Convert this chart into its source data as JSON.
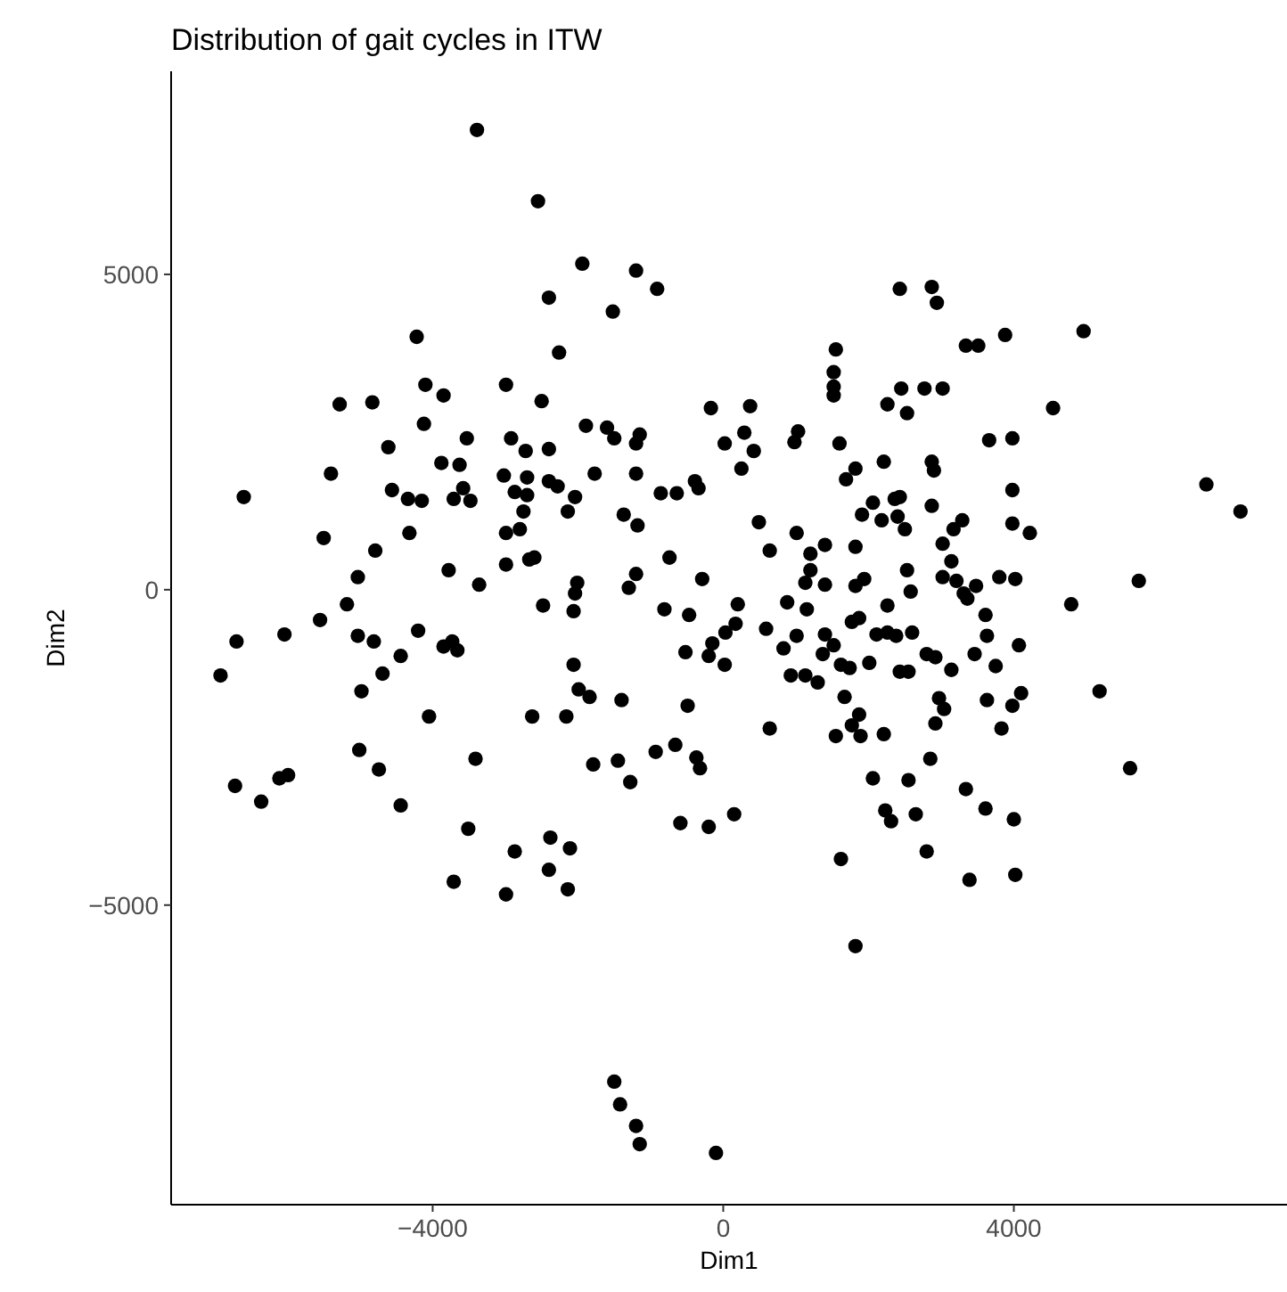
{
  "chart_data": {
    "type": "scatter",
    "title": "Distribution of gait cycles in ITW",
    "xlabel": "Dim1",
    "ylabel": "Dim2",
    "xlim": [
      -7600,
      7760
    ],
    "ylim": [
      -9750,
      8220
    ],
    "xticks": [
      {
        "value": -4000,
        "label": "−4000"
      },
      0,
      4000
    ],
    "yticks": [
      {
        "value": -5000,
        "label": "−5000"
      },
      0,
      5000
    ],
    "grid": false,
    "marker": "circle",
    "series": [
      {
        "color": "#000000",
        "x": [
          -3390,
          -2550,
          -2400,
          -4220,
          -4100,
          -3850,
          -2990,
          -2500,
          -5280,
          -4830,
          -4120,
          -3530,
          -2920,
          -2720,
          -2400,
          -4610,
          -3880,
          -3630,
          -5400,
          -3020,
          -2700,
          -4560,
          -4340,
          -4150,
          -3710,
          -3580,
          -3480,
          -2870,
          -2700,
          -2750,
          -2400,
          -5500,
          -4320,
          -4790,
          -5030,
          -3780,
          -3360,
          -2990,
          -2800,
          -2990,
          -2670,
          -2600,
          -6600,
          -1940,
          -1200,
          -910,
          -1520,
          -2260,
          2430,
          1550,
          1520,
          1520,
          1520,
          2450,
          2260,
          2530,
          -170,
          370,
          290,
          420,
          20,
          250,
          1030,
          980,
          1600,
          1820,
          1690,
          2210,
          2360,
          2060,
          1910,
          2180,
          2400,
          2500,
          1820,
          1400,
          1200,
          1010,
          640,
          490,
          1200,
          1130,
          1400,
          1820,
          1940,
          2530,
          -1890,
          -1600,
          -1500,
          -1150,
          -1200,
          -1770,
          -1200,
          -2280,
          -2040,
          -2140,
          -860,
          -640,
          -390,
          -340,
          -1370,
          -1180,
          -740,
          -290,
          -1200,
          -1300,
          -2010,
          -2040,
          880,
          200,
          2870,
          2940,
          3340,
          3510,
          3880,
          4960,
          2770,
          3020,
          4540,
          3660,
          3980,
          2870,
          2900,
          3980,
          6650,
          7120,
          2430,
          2870,
          3290,
          3170,
          3980,
          4220,
          3020,
          3140,
          2580,
          3020,
          3210,
          3480,
          3800,
          4020,
          5720,
          4790,
          3310,
          -5180,
          -5550,
          -6040,
          -6700,
          -6920,
          -5030,
          -4810,
          -4200,
          -4440,
          -4690,
          -4980,
          -3850,
          -3730,
          -3660,
          -4050,
          -2630,
          -5010,
          -4740,
          -3410,
          -6720,
          -6360,
          -6110,
          -5990,
          -4440,
          -3510,
          -2870,
          -3710,
          -2990,
          -2480,
          -2380,
          -2400,
          -2060,
          -2060,
          -1990,
          -1840,
          -1400,
          -2160,
          -1790,
          -1450,
          -1280,
          -930,
          -660,
          -370,
          -320,
          -590,
          -200,
          150,
          -2110,
          -2140,
          -490,
          640,
          1620,
          1820,
          1550,
          1890,
          1770,
          1870,
          1670,
          2210,
          2060,
          2550,
          2230,
          2310,
          2650,
          -520,
          -200,
          20,
          -150,
          30,
          170,
          -810,
          -470,
          590,
          830,
          1010,
          1150,
          930,
          1130,
          1300,
          1370,
          1520,
          1400,
          1620,
          1740,
          2010,
          1770,
          1870,
          2110,
          2260,
          2380,
          2430,
          2550,
          2260,
          -1500,
          -1420,
          -1200,
          -1150,
          -100,
          3360,
          3610,
          3630,
          2600,
          4070,
          2800,
          2920,
          3460,
          3140,
          3750,
          2970,
          3040,
          3630,
          4100,
          3980,
          2920,
          3830,
          2850,
          3340,
          3610,
          4000,
          2800,
          3390,
          4020,
          5180,
          5600
        ],
        "values": [
          7290,
          6160,
          4630,
          4010,
          3250,
          3080,
          3250,
          2990,
          2940,
          2970,
          2630,
          2400,
          2400,
          2200,
          2230,
          2260,
          2010,
          1980,
          1840,
          1810,
          1780,
          1580,
          1440,
          1410,
          1440,
          1610,
          1410,
          1550,
          1500,
          1240,
          1720,
          820,
          900,
          620,
          200,
          310,
          80,
          900,
          960,
          400,
          480,
          510,
          1470,
          5170,
          5060,
          4770,
          4410,
          3760,
          4770,
          3810,
          3450,
          3220,
          3080,
          3190,
          2940,
          2800,
          2880,
          2910,
          2490,
          2200,
          2320,
          1920,
          2510,
          2340,
          2320,
          1920,
          1750,
          2030,
          1440,
          1380,
          1190,
          1100,
          1160,
          960,
          680,
          710,
          570,
          900,
          620,
          1070,
          310,
          110,
          80,
          60,
          170,
          310,
          2600,
          2570,
          2400,
          2460,
          2320,
          1840,
          1840,
          1640,
          1470,
          1240,
          1530,
          1530,
          1720,
          1610,
          1190,
          1020,
          510,
          170,
          250,
          30,
          110,
          -60,
          -200,
          -230,
          4800,
          4550,
          3870,
          3870,
          4040,
          4100,
          3190,
          3190,
          2880,
          2370,
          2400,
          2030,
          1890,
          1580,
          1670,
          1240,
          1470,
          1330,
          1100,
          960,
          1050,
          900,
          730,
          450,
          -30,
          200,
          140,
          60,
          200,
          170,
          140,
          -230,
          -60,
          -230,
          -480,
          -710,
          -820,
          -1360,
          -730,
          -820,
          -650,
          -1050,
          -1330,
          -1610,
          -900,
          -820,
          -960,
          -2010,
          -2010,
          -2540,
          -2850,
          -2680,
          -3110,
          -3360,
          -2990,
          -2940,
          -3420,
          -3790,
          -4150,
          -4630,
          -4830,
          -250,
          -3930,
          -4440,
          -340,
          -1190,
          -1580,
          -1700,
          -1750,
          -2010,
          -2770,
          -2710,
          -3050,
          -2570,
          -2460,
          -2660,
          -2830,
          -3700,
          -3760,
          -3560,
          -4100,
          -4750,
          -1840,
          -2200,
          -4270,
          -5650,
          -2320,
          -2320,
          -2150,
          -1980,
          -1700,
          -2290,
          -2990,
          -3020,
          -3500,
          -3670,
          -3560,
          -990,
          -1050,
          -1190,
          -850,
          -680,
          -540,
          -310,
          -400,
          -620,
          -930,
          -730,
          -310,
          -1360,
          -1360,
          -1470,
          -1020,
          -880,
          -710,
          -1190,
          -1240,
          -1160,
          -510,
          -450,
          -710,
          -680,
          -730,
          -1300,
          -1300,
          -250,
          -7800,
          -8160,
          -8500,
          -8790,
          -8930,
          -140,
          -400,
          -730,
          -680,
          -880,
          -1020,
          -1070,
          -1020,
          -1270,
          -1210,
          -1720,
          -1890,
          -1750,
          -1640,
          -1840,
          -2120,
          -2200,
          -2680,
          -3160,
          -3470,
          -3640,
          -4150,
          -4600,
          -4520,
          -1610,
          -2830
        ]
      }
    ]
  }
}
